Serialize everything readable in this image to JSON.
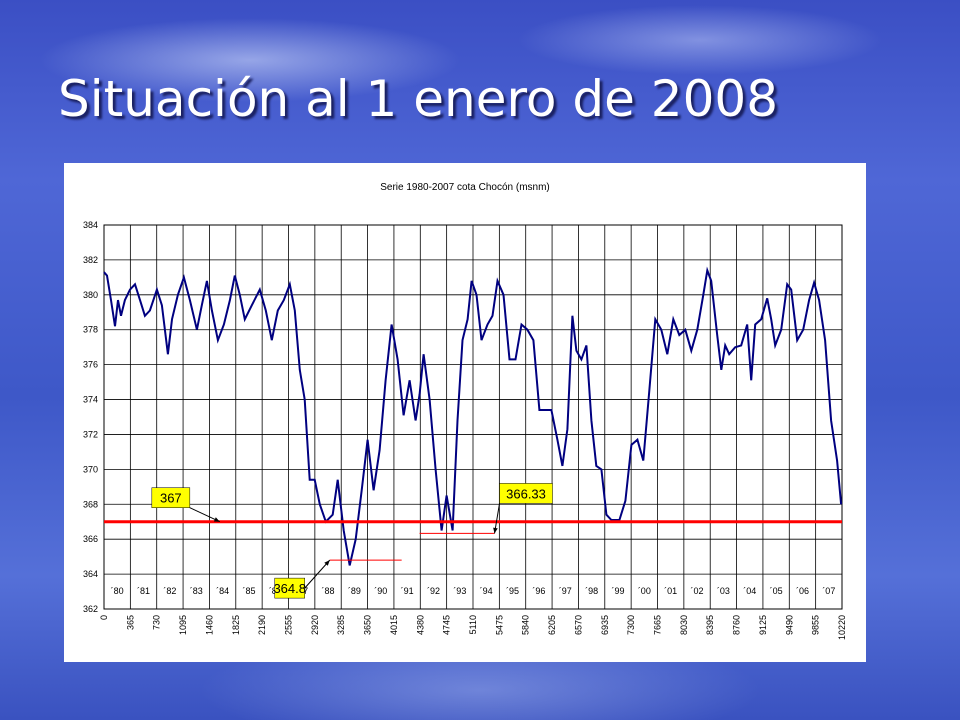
{
  "slide_title": "Situación al 1 enero de 2008",
  "chart_data": {
    "type": "line",
    "title": "Serie 1980-2007 cota Chocón (msnm)",
    "series": [
      {
        "name": "cota Chocón",
        "color": "#000080",
        "x": [
          0,
          41,
          97,
          152,
          194,
          235,
          290,
          360,
          429,
          498,
          567,
          636,
          733,
          802,
          885,
          941,
          1023,
          1107,
          1189,
          1286,
          1355,
          1425,
          1494,
          1577,
          1660,
          1743,
          1812,
          1881,
          1950,
          2047,
          2158,
          2241,
          2324,
          2407,
          2490,
          2573,
          2642,
          2711,
          2780,
          2849,
          2918,
          2988,
          3071,
          3167,
          3237,
          3320,
          3402,
          3485,
          3568,
          3651,
          3734,
          3817,
          3900,
          3983,
          4066,
          4149,
          4232,
          4315,
          4371,
          4426,
          4509,
          4592,
          4675,
          4744,
          4827,
          4896,
          4965,
          5035,
          5090,
          5159,
          5228,
          5311,
          5380,
          5449,
          5532,
          5615,
          5698,
          5781,
          5864,
          5947,
          6030,
          6113,
          6196,
          6279,
          6348,
          6417,
          6487,
          6542,
          6611,
          6680,
          6749,
          6818,
          6888,
          6957,
          7026,
          7137,
          7220,
          7303,
          7386,
          7469,
          7552,
          7635,
          7718,
          7801,
          7884,
          7967,
          8050,
          8133,
          8216,
          8299,
          8354,
          8409,
          8492,
          8548,
          8603,
          8658,
          8741,
          8824,
          8907,
          8963,
          9018,
          9101,
          9184,
          9239,
          9295,
          9378,
          9461,
          9516,
          9599,
          9682,
          9765,
          9834,
          9903,
          9986,
          10069,
          10152,
          10207
        ],
        "values": [
          381.3,
          381.1,
          379.7,
          378.2,
          379.7,
          378.8,
          379.7,
          380.3,
          380.6,
          379.7,
          378.8,
          379.1,
          380.3,
          379.4,
          376.6,
          378.6,
          380,
          381,
          379.7,
          378,
          379.4,
          380.8,
          379.1,
          377.4,
          378.3,
          379.7,
          381.1,
          380,
          378.6,
          379.4,
          380.3,
          379.1,
          377.4,
          379.1,
          379.7,
          380.6,
          379.1,
          375.7,
          374,
          369.4,
          369.4,
          368,
          367,
          367.4,
          369.4,
          366.5,
          364.5,
          366,
          368.8,
          371.7,
          368.8,
          371.1,
          375.1,
          378.3,
          376.3,
          373.1,
          375.1,
          372.8,
          374.3,
          376.6,
          374,
          370,
          366.5,
          368.5,
          366.5,
          372.8,
          377.4,
          378.6,
          380.8,
          380,
          377.4,
          378.3,
          378.8,
          380.8,
          380,
          376.3,
          376.3,
          378.3,
          378,
          377.4,
          373.4,
          373.4,
          373.4,
          371.7,
          370.2,
          372.3,
          378.8,
          376.8,
          376.3,
          377.1,
          372.8,
          370.2,
          370,
          367.4,
          367.1,
          367.1,
          368.2,
          371.4,
          371.7,
          370.5,
          374.5,
          378.6,
          378,
          376.6,
          378.6,
          377.7,
          378,
          376.8,
          378,
          380,
          381.4,
          380.8,
          377.7,
          375.7,
          377.1,
          376.6,
          377,
          377.1,
          378.3,
          375.1,
          378.3,
          378.6,
          379.8,
          378.6,
          377.1,
          378,
          380.6,
          380.3,
          377.4,
          378,
          379.7,
          380.7,
          379.7,
          377.4,
          372.8,
          370.5,
          368
        ]
      }
    ],
    "xlim": [
      0,
      10220
    ],
    "xticks": [
      0,
      365,
      730,
      1095,
      1460,
      1825,
      2190,
      2555,
      2920,
      3285,
      3650,
      4015,
      4380,
      4745,
      5110,
      5475,
      5840,
      6205,
      6570,
      6935,
      7300,
      7665,
      8030,
      8395,
      8760,
      9125,
      9490,
      9855,
      10220
    ],
    "ylim": [
      362,
      384
    ],
    "yticks": [
      362,
      364,
      366,
      368,
      370,
      372,
      374,
      376,
      378,
      380,
      382,
      384
    ],
    "grid": true,
    "year_labels": [
      "´80",
      "´81",
      "´82",
      "´83",
      "´84",
      "´85",
      "´86",
      "´87",
      "´88",
      "´89",
      "´90",
      "´91",
      "´92",
      "´93",
      "´94",
      "´95",
      "´96",
      "´97",
      "´98",
      "´99",
      "´00",
      "´01",
      "´02",
      "´03",
      "´04",
      "´05",
      "´06",
      "´07"
    ],
    "reference_line": {
      "value": 367,
      "color": "#ff0000"
    },
    "annotations": [
      {
        "label": "367",
        "value": 367,
        "x": 1604
      },
      {
        "label": "364.8",
        "value": 364.8,
        "x": 3126,
        "x_end": 4122
      },
      {
        "label": "366.33",
        "value": 366.33,
        "x": 5408,
        "x_end": 4370
      }
    ]
  }
}
